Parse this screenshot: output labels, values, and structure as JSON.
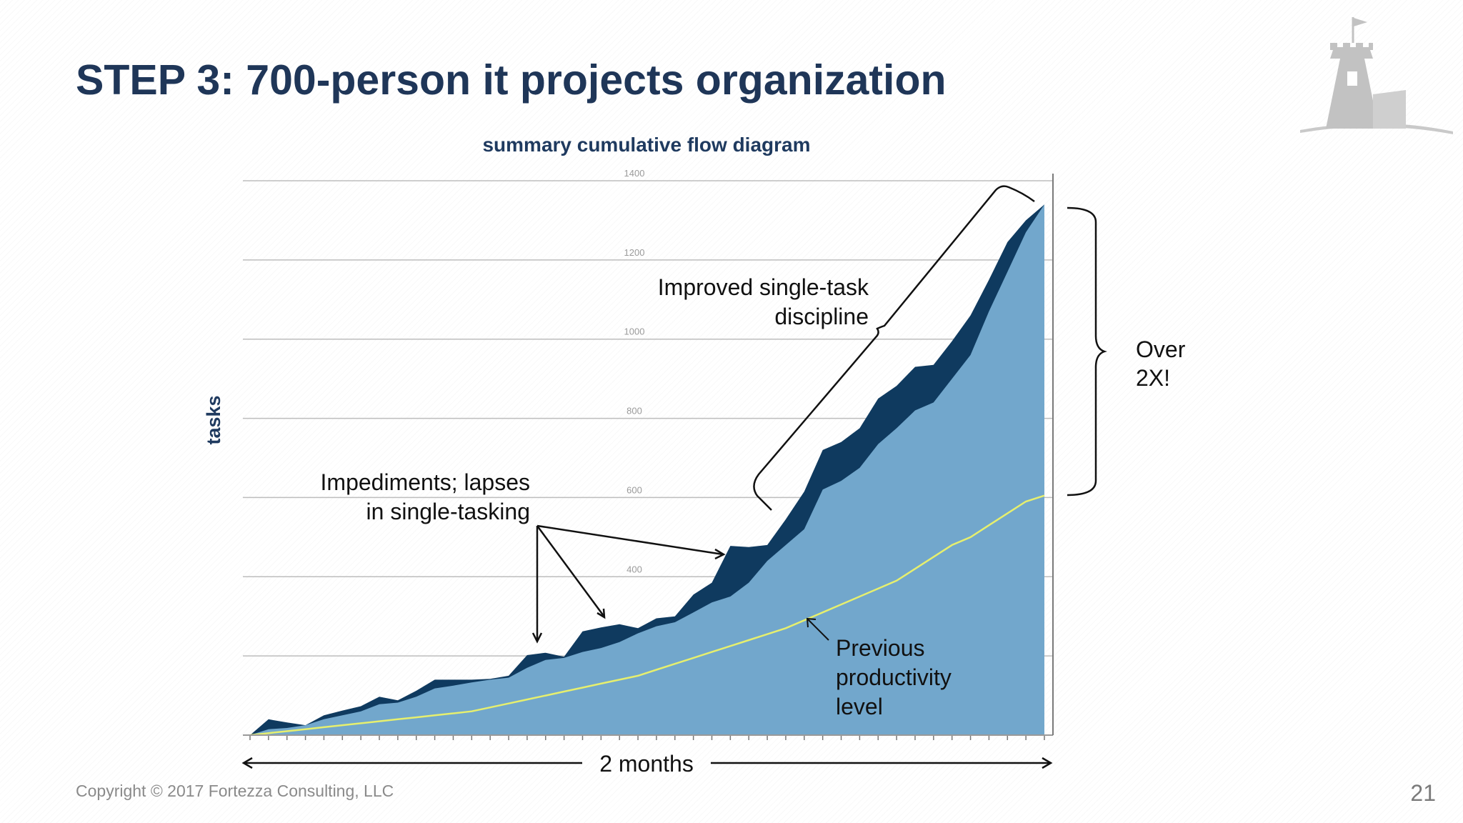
{
  "slide": {
    "title": "STEP 3: 700-person it projects organization",
    "copyright": "Copyright  © 2017 Fortezza Consulting, LLC",
    "page_number": "21"
  },
  "logo": {
    "name": "fortezza-tower-logo",
    "color": "#c4c4c4"
  },
  "colors": {
    "upper_area": "#0f3a5f",
    "lower_area": "#72a7cc",
    "previous_line": "#e6ef6e",
    "gridline": "#bdbdbd",
    "title": "#1f3658"
  },
  "chart_data": {
    "type": "area",
    "title": "summary cumulative flow diagram",
    "ylabel": "tasks",
    "xlabel": "2 months",
    "ylim": [
      0,
      1400
    ],
    "yticks": [
      0,
      200,
      400,
      600,
      800,
      1000,
      1200,
      1400
    ],
    "ytick_labels": [
      "",
      "",
      "400",
      "600",
      "800",
      "1000",
      "1200",
      "1400"
    ],
    "grid": true,
    "x": [
      0,
      1,
      2,
      3,
      4,
      5,
      6,
      7,
      8,
      9,
      10,
      11,
      12,
      13,
      14,
      15,
      16,
      17,
      18,
      19,
      20,
      21,
      22,
      23,
      24,
      25,
      26,
      27,
      28,
      29,
      30,
      31,
      32,
      33,
      34,
      35,
      36,
      37,
      38,
      39,
      40,
      41,
      42,
      43
    ],
    "series": [
      {
        "values": [
          0,
          40,
          32,
          25,
          50,
          62,
          73,
          97,
          88,
          112,
          140,
          140,
          140,
          142,
          150,
          202,
          208,
          198,
          262,
          272,
          280,
          270,
          295,
          300,
          355,
          385,
          478,
          475,
          480,
          545,
          615,
          720,
          740,
          775,
          850,
          882,
          930,
          935,
          995,
          1060,
          1150,
          1245,
          1300,
          1340
        ]
      },
      {
        "values": [
          0,
          15,
          18,
          25,
          40,
          50,
          60,
          78,
          82,
          97,
          118,
          125,
          133,
          140,
          145,
          170,
          190,
          195,
          210,
          220,
          235,
          257,
          275,
          285,
          310,
          335,
          350,
          385,
          440,
          480,
          520,
          620,
          642,
          675,
          735,
          775,
          820,
          840,
          900,
          960,
          1070,
          1170,
          1270,
          1340
        ]
      },
      {
        "values": [
          0,
          5,
          10,
          15,
          20,
          25,
          30,
          35,
          40,
          45,
          50,
          55,
          60,
          70,
          80,
          90,
          100,
          110,
          120,
          130,
          140,
          150,
          165,
          180,
          195,
          210,
          225,
          240,
          255,
          270,
          290,
          310,
          330,
          350,
          370,
          390,
          420,
          450,
          480,
          500,
          530,
          560,
          590,
          605
        ]
      }
    ],
    "annotations": {
      "impediments": [
        "Impediments; lapses",
        "in single-tasking"
      ],
      "improved": [
        "Improved single-task",
        "discipline"
      ],
      "over": [
        "Over",
        "2X!"
      ],
      "previous": [
        "Previous",
        "productivity",
        "level"
      ]
    }
  }
}
